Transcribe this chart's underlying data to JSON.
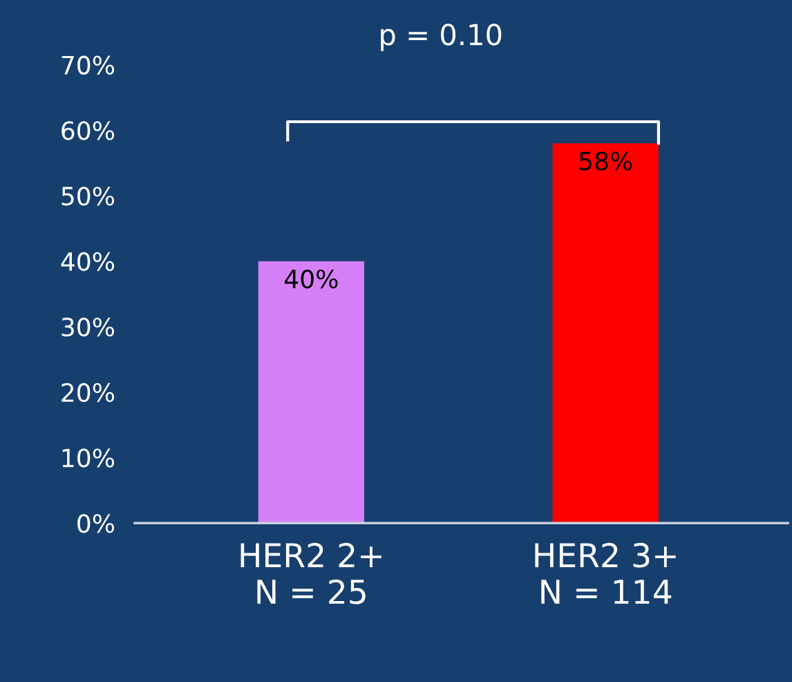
{
  "chart_data": {
    "type": "bar",
    "categories": [
      "HER2 2+\nN = 25",
      "HER2 3+\nN = 114"
    ],
    "values": [
      40,
      58
    ],
    "colors": [
      "#d580f7",
      "#ff0000"
    ],
    "value_labels": [
      "40%",
      "58%"
    ],
    "ylim": [
      0,
      70
    ],
    "yticks": [
      {
        "value": 0,
        "label": "0%"
      },
      {
        "value": 10,
        "label": "10%"
      },
      {
        "value": 20,
        "label": "20%"
      },
      {
        "value": 30,
        "label": "30%"
      },
      {
        "value": 40,
        "label": "40%"
      },
      {
        "value": 50,
        "label": "50%"
      },
      {
        "value": 60,
        "label": "60%"
      },
      {
        "value": 70,
        "label": "70%"
      }
    ],
    "annotations": [
      "p = 0.10"
    ],
    "grid": false
  }
}
